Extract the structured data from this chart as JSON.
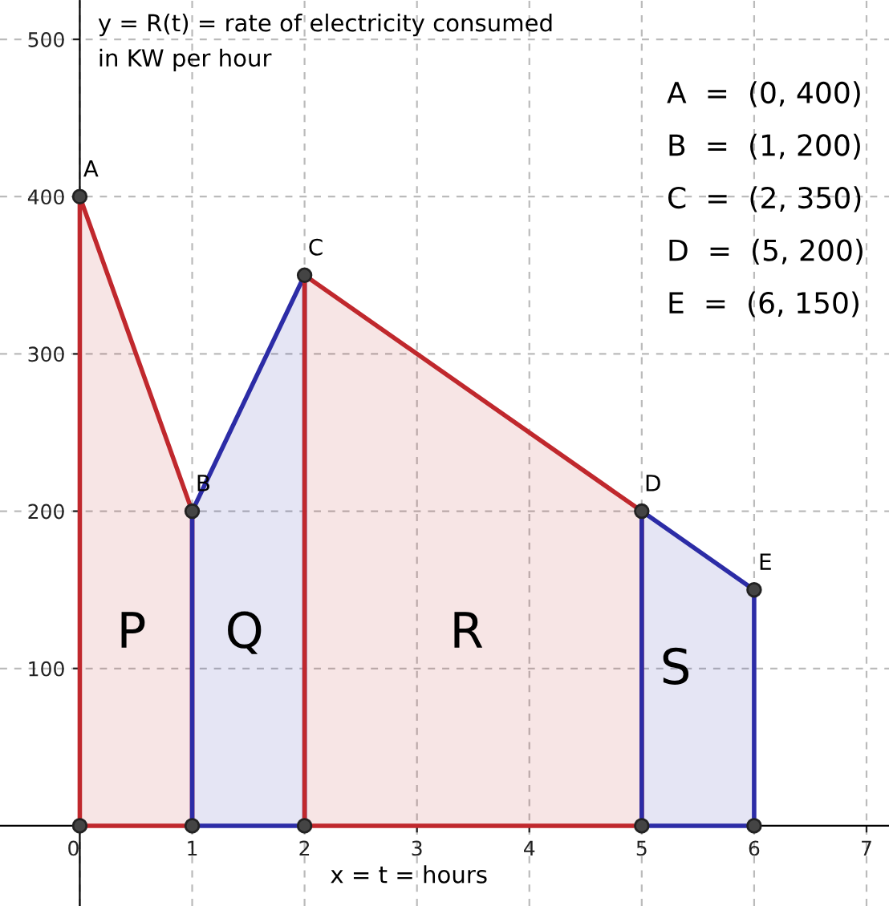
{
  "chart_data": {
    "type": "area",
    "title": "y = R(t) = rate of electricity consumed\nin KW per hour",
    "xlabel": "x = t = hours",
    "series": [
      {
        "color": "#c0282d",
        "x": [
          0,
          1
        ],
        "values": [
          400,
          200
        ]
      },
      {
        "color": "#2c2ca6",
        "x": [
          1,
          2
        ],
        "values": [
          200,
          350
        ]
      },
      {
        "color": "#c0282d",
        "x": [
          2,
          5
        ],
        "values": [
          350,
          200
        ]
      },
      {
        "color": "#2c2ca6",
        "x": [
          5,
          6
        ],
        "values": [
          200,
          150
        ]
      },
      {
        "type": "scatter",
        "marker": "circle",
        "color": "#444444",
        "x": [
          0,
          1,
          2,
          5,
          6,
          0,
          1,
          2,
          5,
          6
        ],
        "values": [
          400,
          200,
          350,
          200,
          150,
          0,
          0,
          0,
          0,
          0
        ]
      }
    ],
    "annotations": [
      {
        "text": "A",
        "x": 0,
        "y": 400
      },
      {
        "text": "B",
        "x": 1,
        "y": 200
      },
      {
        "text": "C",
        "x": 2,
        "y": 350
      },
      {
        "text": "D",
        "x": 5,
        "y": 200
      },
      {
        "text": "E",
        "x": 6,
        "y": 150
      },
      "P",
      "Q",
      "R",
      "S",
      "A  =  (0, 400)",
      "B  =  (1, 200)",
      "C  =  (2, 350)",
      "D  =  (5, 200)",
      "E  =  (6, 150)"
    ],
    "xlim": [
      -0.71,
      7.2
    ],
    "ylim": [
      -51,
      525
    ],
    "xticks": [
      0,
      1,
      2,
      3,
      4,
      5,
      6,
      7
    ],
    "yticks": [
      100,
      200,
      300,
      400,
      500
    ],
    "grid": true
  }
}
